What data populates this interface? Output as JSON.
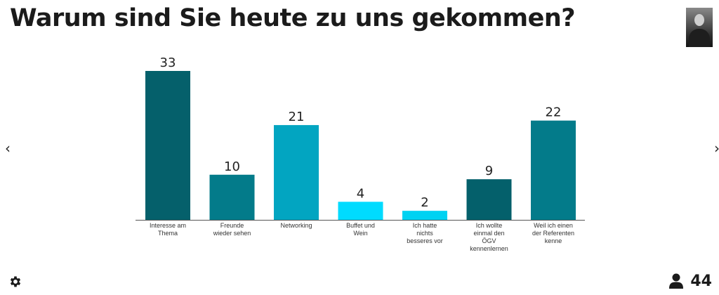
{
  "question": "Warum sind Sie heute zu uns gekommen?",
  "nav": {
    "prev": "‹",
    "next": "›"
  },
  "participants": "44",
  "icons": {
    "settings": "gear-icon",
    "participants": "user-icon",
    "presenter": "avatar",
    "prev": "chevron-left-icon",
    "next": "chevron-right-icon"
  },
  "chart_data": {
    "type": "bar",
    "categories": [
      "Interesse am\nThema",
      "Freunde\nwieder sehen",
      "Networking",
      "Buffet und\nWein",
      "Ich hatte\nnichts\nbesseres vor",
      "Ich wollte\neinmal den\nÖGV\nkennenlernen",
      "Weil ich einen\nder Referenten\nkenne"
    ],
    "values": [
      33,
      10,
      21,
      4,
      2,
      9,
      22
    ],
    "colors": [
      "#05606b",
      "#037b8a",
      "#02a5c1",
      "#00dbff",
      "#00d2f2",
      "#04606b",
      "#037b8a"
    ],
    "ylim": [
      0,
      33
    ],
    "grid": false,
    "legend": "none"
  }
}
